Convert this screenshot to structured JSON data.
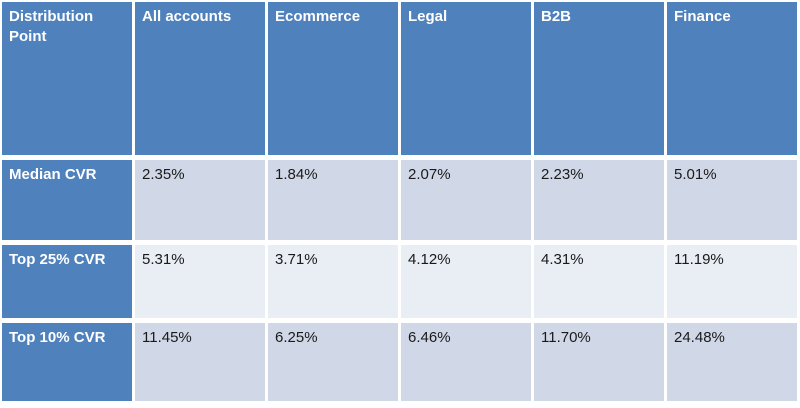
{
  "table": {
    "headers": [
      "Distribution Point",
      "All accounts",
      "Ecommerce",
      "Legal",
      "B2B",
      "Finance"
    ],
    "rows": [
      {
        "label": "Median CVR",
        "values": [
          "2.35%",
          "1.84%",
          "2.07%",
          "2.23%",
          "5.01%"
        ]
      },
      {
        "label": "Top 25% CVR",
        "values": [
          "5.31%",
          "3.71%",
          "4.12%",
          "4.31%",
          "11.19%"
        ]
      },
      {
        "label": "Top 10% CVR",
        "values": [
          "11.45%",
          "6.25%",
          "6.46%",
          "11.70%",
          "24.48%"
        ]
      }
    ]
  },
  "chart_data": {
    "type": "table",
    "columns": [
      "Distribution Point",
      "All accounts",
      "Ecommerce",
      "Legal",
      "B2B",
      "Finance"
    ],
    "rows": [
      {
        "label": "Median CVR",
        "values_pct": [
          2.35,
          1.84,
          2.07,
          2.23,
          5.01
        ]
      },
      {
        "label": "Top 25% CVR",
        "values_pct": [
          5.31,
          3.71,
          4.12,
          4.31,
          11.19
        ]
      },
      {
        "label": "Top 10% CVR",
        "values_pct": [
          11.45,
          6.25,
          6.46,
          11.7,
          24.48
        ]
      }
    ],
    "layout": {
      "banded_rows": true,
      "header_fill": "#4F81BD",
      "band_dark_fill": "#D0D8E8",
      "band_light_fill": "#E9EDF4",
      "grid_line_color": "#FFFFFF",
      "text_align": "left",
      "vertical_align": "top"
    }
  },
  "colors": {
    "header_blue": "#4F81BD",
    "band_dark": "#D0D8E8",
    "band_light": "#E9EDF4",
    "border": "#FFFFFF",
    "header_text": "#FFFFFF",
    "body_text": "#1A1A1A"
  }
}
